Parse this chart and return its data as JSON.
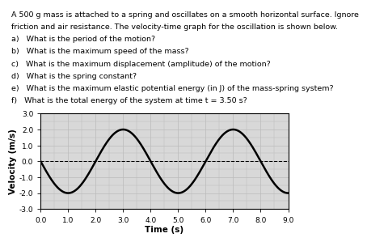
{
  "lines": [
    "A 500 g mass is attached to a spring and oscillates on a smooth horizontal surface. Ignore",
    "friction and air resistance. The velocity-time graph for the oscillation is shown below.",
    "a)   What is the period of the motion?",
    "b)   What is the maximum speed of the mass?",
    "c)   What is the maximum displacement (amplitude) of the motion?",
    "d)   What is the spring constant?",
    "e)   What is the maximum elastic potential energy (in J) of the mass-spring system?",
    "f)   What is the total energy of the system at time t = 3.50 s?"
  ],
  "xlabel": "Time (s)",
  "ylabel": "Velocity (m/s)",
  "xlim": [
    0.0,
    9.0
  ],
  "ylim": [
    -3.0,
    3.0
  ],
  "xticks": [
    0.0,
    1.0,
    2.0,
    3.0,
    4.0,
    5.0,
    6.0,
    7.0,
    8.0,
    9.0
  ],
  "yticks": [
    -3.0,
    -2.0,
    -1.0,
    0.0,
    1.0,
    2.0,
    3.0
  ],
  "amplitude": 2.0,
  "period": 4.0,
  "line_color": "#000000",
  "line_width": 1.8,
  "grid_color": "#bbbbbb",
  "bg_color": "#d8d8d8",
  "text_fontsize": 6.8,
  "axis_label_fontsize": 7.5,
  "tick_fontsize": 6.5,
  "fig_bg": "#ffffff"
}
